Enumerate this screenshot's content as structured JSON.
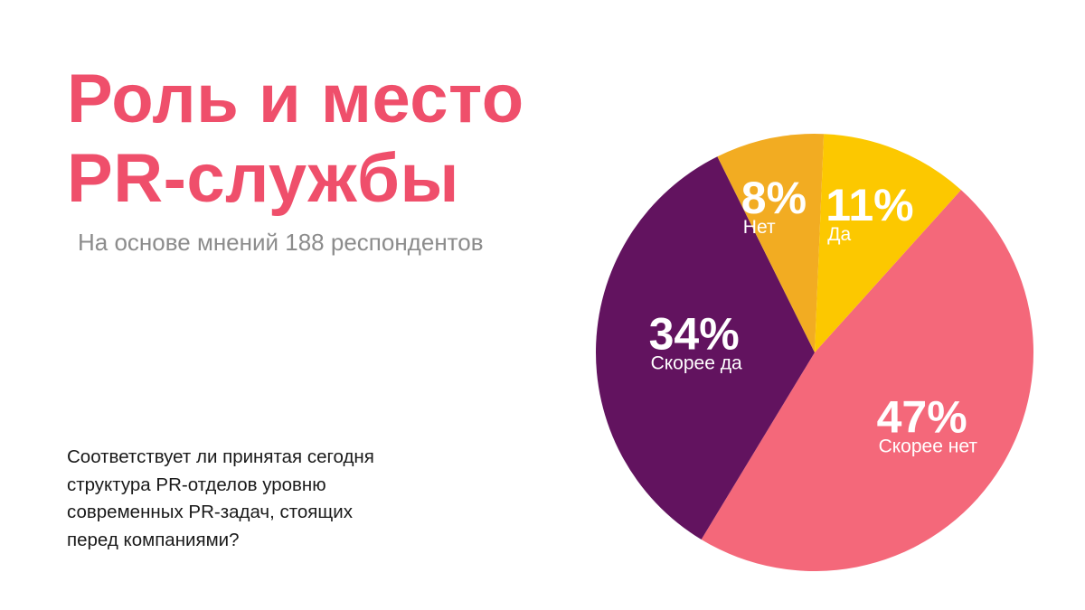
{
  "slide": {
    "title_line1": "Роль и место",
    "title_line2": "PR-службы",
    "subtitle": "На основе мнений 188 респондентов",
    "question_lines": [
      "Соответствует ли принятая сегодня",
      "структура PR-отделов уровню",
      "современных PR-задач, стоящих",
      "перед компаниями?"
    ]
  },
  "chart_data": {
    "type": "pie",
    "title": "",
    "slices": [
      {
        "label": "Скорее нет",
        "value": 47,
        "value_label": "47%",
        "color": "#f4687a"
      },
      {
        "label": "Скорее да",
        "value": 34,
        "value_label": "34%",
        "color": "#62135f"
      },
      {
        "label": "Нет",
        "value": 8,
        "value_label": "8%",
        "color": "#f2ac22"
      },
      {
        "label": "Да",
        "value": 11,
        "value_label": "11%",
        "color": "#fcc800"
      }
    ],
    "legend": "none"
  }
}
